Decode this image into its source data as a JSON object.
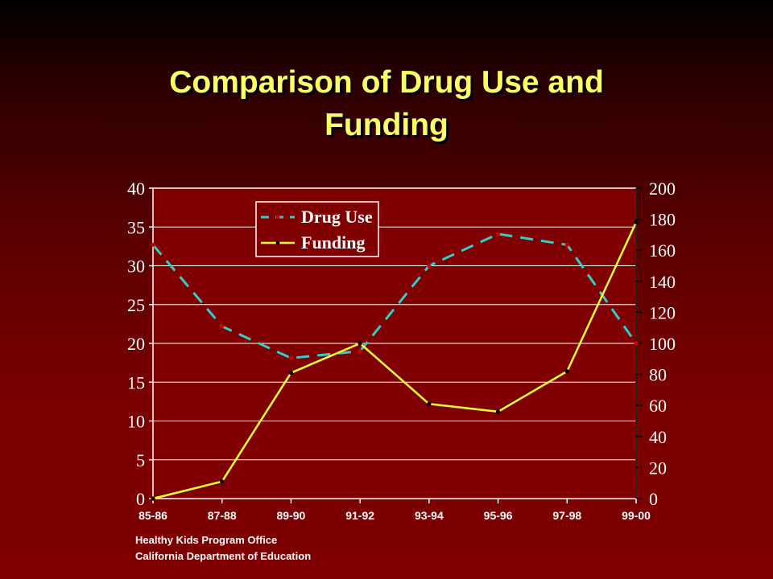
{
  "title_line1": "Comparison of Drug Use and",
  "title_line2": "Funding",
  "source_line1": "Healthy Kids Program Office",
  "source_line2": "California Department of Education",
  "colors": {
    "drug_use": "#33cccc",
    "drug_use_marker": "#cc0000",
    "funding": "#ffff33",
    "funding_marker": "#000000",
    "legend_bg": "#800000",
    "gridline": "#ffffff"
  },
  "chart_data": {
    "type": "line",
    "categories": [
      "85-86",
      "87-88",
      "89-90",
      "91-92",
      "93-94",
      "95-96",
      "97-98",
      "99-00"
    ],
    "left_axis": {
      "ylim": [
        0,
        40
      ],
      "ticks": [
        0,
        5,
        10,
        15,
        20,
        25,
        30,
        35,
        40
      ]
    },
    "right_axis": {
      "ylim": [
        0,
        200
      ],
      "ticks": [
        0,
        20,
        40,
        60,
        80,
        100,
        120,
        140,
        160,
        180,
        200
      ]
    },
    "grid": true,
    "legend_position": "top-left",
    "series": [
      {
        "name": "Drug Use",
        "axis": "left",
        "style": "dashed",
        "values": [
          32.7,
          22.2,
          18.1,
          19,
          30,
          34.1,
          32.7,
          20
        ]
      },
      {
        "name": "Funding",
        "axis": "right",
        "style": "solid",
        "values": [
          0,
          11,
          81,
          100,
          61,
          56,
          82,
          178
        ]
      }
    ]
  }
}
